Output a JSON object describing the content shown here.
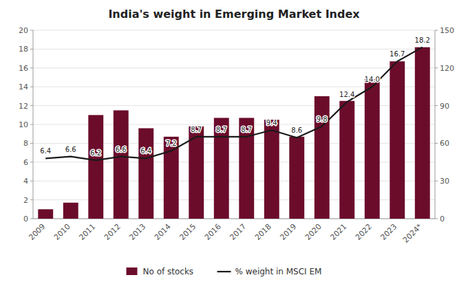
{
  "chart_data": {
    "type": "bar",
    "title": "India's weight in Emerging Market Index",
    "categories": [
      "2009",
      "2010",
      "2011",
      "2012",
      "2013",
      "2014",
      "2015",
      "2016",
      "2017",
      "2018",
      "2019",
      "2020",
      "2021",
      "2022",
      "2023",
      "2024*"
    ],
    "series": [
      {
        "name": "No of stocks",
        "type": "bar",
        "color": "#6B0C2B",
        "values": [
          1.0,
          1.7,
          11.0,
          11.5,
          9.6,
          8.7,
          9.8,
          10.7,
          10.7,
          10.5,
          8.7,
          13.0,
          12.5,
          14.8,
          16.7,
          18.2
        ]
      },
      {
        "name": "% weight in MSCI EM",
        "type": "line",
        "color": "#1a1a1a",
        "data_labels": true,
        "values": [
          6.4,
          6.6,
          6.2,
          6.6,
          6.4,
          7.2,
          8.7,
          8.7,
          8.7,
          9.4,
          8.6,
          9.8,
          12.4,
          14.0,
          16.7,
          18.2
        ],
        "value_labels": [
          "6.4",
          "6.6",
          "6.2",
          "6.6",
          "6.4",
          "7.2",
          "8.7",
          "8.7",
          "8.7",
          "9.4",
          "8.6",
          "9.8",
          "12.4",
          "14.0",
          "16.7",
          "18.2"
        ]
      }
    ],
    "ylim": [
      0,
      20
    ],
    "yticks": [
      0,
      2,
      4,
      6,
      8,
      10,
      12,
      14,
      16,
      18,
      20
    ],
    "y2lim": [
      0,
      150
    ],
    "y2ticks": [
      0,
      30,
      60,
      90,
      120,
      150
    ],
    "grid": true,
    "legend": "bottom"
  }
}
